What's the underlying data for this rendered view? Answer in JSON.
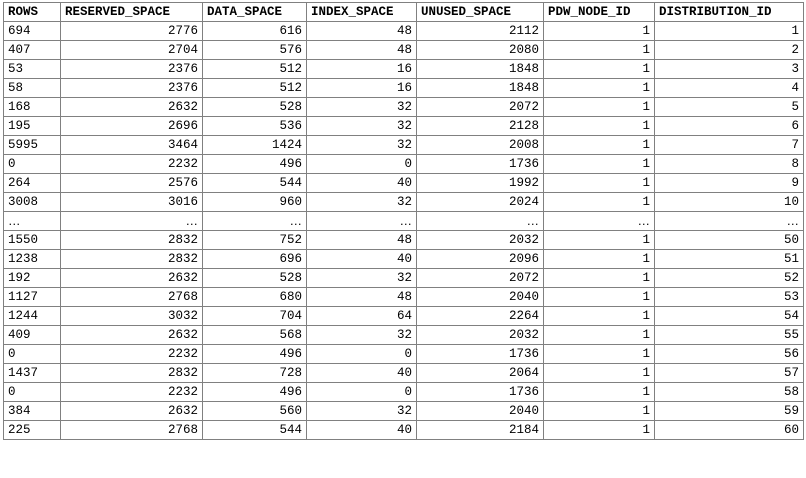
{
  "columns": [
    "ROWS",
    "RESERVED_SPACE",
    "DATA_SPACE",
    "INDEX_SPACE",
    "UNUSED_SPACE",
    "PDW_NODE_ID",
    "DISTRIBUTION_ID"
  ],
  "rows": [
    [
      "694",
      "2776",
      "616",
      "48",
      "2112",
      "1",
      "1"
    ],
    [
      "407",
      "2704",
      "576",
      "48",
      "2080",
      "1",
      "2"
    ],
    [
      "53",
      "2376",
      "512",
      "16",
      "1848",
      "1",
      "3"
    ],
    [
      "58",
      "2376",
      "512",
      "16",
      "1848",
      "1",
      "4"
    ],
    [
      "168",
      "2632",
      "528",
      "32",
      "2072",
      "1",
      "5"
    ],
    [
      "195",
      "2696",
      "536",
      "32",
      "2128",
      "1",
      "6"
    ],
    [
      "5995",
      "3464",
      "1424",
      "32",
      "2008",
      "1",
      "7"
    ],
    [
      "0",
      "2232",
      "496",
      "0",
      "1736",
      "1",
      "8"
    ],
    [
      "264",
      "2576",
      "544",
      "40",
      "1992",
      "1",
      "9"
    ],
    [
      "3008",
      "3016",
      "960",
      "32",
      "2024",
      "1",
      "10"
    ],
    [
      "…",
      "…",
      "…",
      "…",
      "…",
      "…",
      "…"
    ],
    [
      "1550",
      "2832",
      "752",
      "48",
      "2032",
      "1",
      "50"
    ],
    [
      "1238",
      "2832",
      "696",
      "40",
      "2096",
      "1",
      "51"
    ],
    [
      "192",
      "2632",
      "528",
      "32",
      "2072",
      "1",
      "52"
    ],
    [
      "1127",
      "2768",
      "680",
      "48",
      "2040",
      "1",
      "53"
    ],
    [
      "1244",
      "3032",
      "704",
      "64",
      "2264",
      "1",
      "54"
    ],
    [
      "409",
      "2632",
      "568",
      "32",
      "2032",
      "1",
      "55"
    ],
    [
      "0",
      "2232",
      "496",
      "0",
      "1736",
      "1",
      "56"
    ],
    [
      "1437",
      "2832",
      "728",
      "40",
      "2064",
      "1",
      "57"
    ],
    [
      "0",
      "2232",
      "496",
      "0",
      "1736",
      "1",
      "58"
    ],
    [
      "384",
      "2632",
      "560",
      "32",
      "2040",
      "1",
      "59"
    ],
    [
      "225",
      "2768",
      "544",
      "40",
      "2184",
      "1",
      "60"
    ]
  ]
}
